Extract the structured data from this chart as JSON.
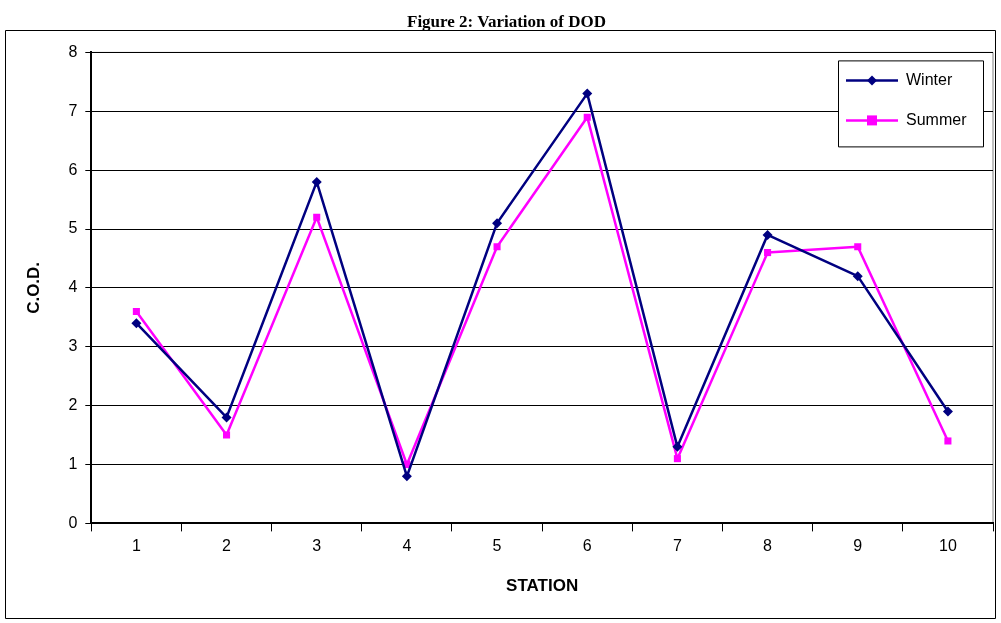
{
  "chart_data": {
    "type": "line",
    "title": "Figure 2: Variation of DOD",
    "xlabel": "STATION",
    "ylabel": "C.O.D.",
    "categories": [
      "1",
      "2",
      "3",
      "4",
      "5",
      "6",
      "7",
      "8",
      "9",
      "10"
    ],
    "series": [
      {
        "name": "Winter",
        "color": "#000080",
        "marker": "diamond",
        "values": [
          3.4,
          1.8,
          5.8,
          0.8,
          5.1,
          7.3,
          1.3,
          4.9,
          4.2,
          1.9
        ]
      },
      {
        "name": "Summer",
        "color": "#ff00ff",
        "marker": "square",
        "values": [
          3.6,
          1.5,
          5.2,
          1.0,
          4.7,
          6.9,
          1.1,
          4.6,
          4.7,
          1.4
        ]
      }
    ],
    "ylim": [
      0,
      8
    ],
    "yticks": [
      0,
      1,
      2,
      3,
      4,
      5,
      6,
      7,
      8
    ],
    "grid": "y",
    "legend": "top right",
    "line_style": "solid"
  }
}
